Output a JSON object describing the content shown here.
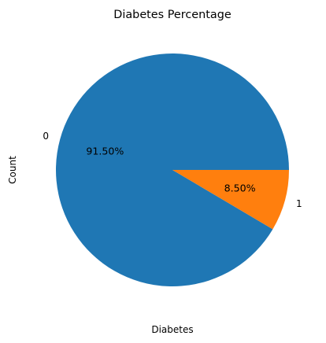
{
  "chart_data": {
    "type": "pie",
    "title": "Diabetes Percentage",
    "xlabel": "Diabetes",
    "ylabel": "Count",
    "slices": [
      {
        "label": "0",
        "percent": 91.5,
        "percent_label": "91.50%",
        "color": "#1f77b4"
      },
      {
        "label": "1",
        "percent": 8.5,
        "percent_label": "8.50%",
        "color": "#ff7f0e"
      }
    ],
    "start_angle_deg": 0,
    "direction": "counterclockwise",
    "legend": false,
    "grid": false
  }
}
